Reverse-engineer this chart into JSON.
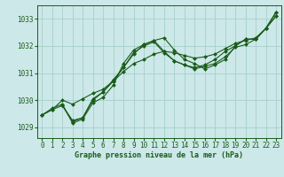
{
  "background_color": "#cce8e8",
  "grid_color": "#a8d0cc",
  "line_color": "#1a5c1a",
  "marker_color": "#1a5c1a",
  "xlabel": "Graphe pression niveau de la mer (hPa)",
  "xlim": [
    -0.5,
    23.5
  ],
  "ylim": [
    1028.6,
    1033.5
  ],
  "yticks": [
    1029,
    1030,
    1031,
    1032,
    1033
  ],
  "xticks": [
    0,
    1,
    2,
    3,
    4,
    5,
    6,
    7,
    8,
    9,
    10,
    11,
    12,
    13,
    14,
    15,
    16,
    17,
    18,
    19,
    20,
    21,
    22,
    23
  ],
  "lines": [
    {
      "x": [
        0,
        1,
        2,
        3,
        4,
        5,
        6,
        7,
        8,
        9,
        10,
        11,
        12,
        13,
        14,
        15,
        16,
        17,
        18,
        19,
        20,
        21,
        22,
        23
      ],
      "y": [
        1029.45,
        1029.7,
        1029.85,
        1029.15,
        1029.3,
        1029.9,
        1030.1,
        1030.55,
        1031.35,
        1031.85,
        1032.05,
        1032.2,
        1032.3,
        1031.85,
        1031.5,
        1031.35,
        1031.15,
        1031.3,
        1031.5,
        1032.0,
        1032.25,
        1032.25,
        1032.65,
        1033.25
      ]
    },
    {
      "x": [
        0,
        1,
        2,
        3,
        4,
        5,
        6,
        7,
        8,
        9,
        10,
        11,
        12,
        13,
        14,
        15,
        16,
        17,
        18,
        19,
        20,
        21,
        22,
        23
      ],
      "y": [
        1029.45,
        1029.65,
        1029.8,
        1029.2,
        1029.35,
        1030.05,
        1030.3,
        1030.75,
        1031.2,
        1031.75,
        1032.0,
        1032.15,
        1031.75,
        1031.45,
        1031.3,
        1031.15,
        1031.25,
        1031.35,
        1031.6,
        1031.95,
        1032.05,
        1032.25,
        1032.65,
        1033.1
      ]
    },
    {
      "x": [
        2,
        3,
        4,
        5,
        6,
        7,
        8,
        9,
        10,
        11,
        12,
        13,
        14,
        15,
        16,
        17,
        18,
        19,
        20,
        21,
        22,
        23
      ],
      "y": [
        1029.8,
        1029.25,
        1029.35,
        1030.0,
        1030.3,
        1030.7,
        1031.2,
        1031.7,
        1032.05,
        1032.2,
        1031.8,
        1031.45,
        1031.3,
        1031.2,
        1031.3,
        1031.5,
        1031.8,
        1032.0,
        1032.25,
        1032.25,
        1032.65,
        1033.25
      ]
    },
    {
      "x": [
        0,
        1,
        2,
        3,
        4,
        5,
        6,
        7,
        8,
        9,
        10,
        11,
        12,
        13,
        14,
        15,
        16,
        17,
        18,
        19,
        20,
        21,
        22,
        23
      ],
      "y": [
        1029.45,
        1029.65,
        1030.0,
        1029.85,
        1030.05,
        1030.25,
        1030.4,
        1030.7,
        1031.05,
        1031.35,
        1031.5,
        1031.7,
        1031.8,
        1031.75,
        1031.65,
        1031.55,
        1031.6,
        1031.7,
        1031.9,
        1032.1,
        1032.2,
        1032.3,
        1032.65,
        1033.1
      ]
    }
  ]
}
